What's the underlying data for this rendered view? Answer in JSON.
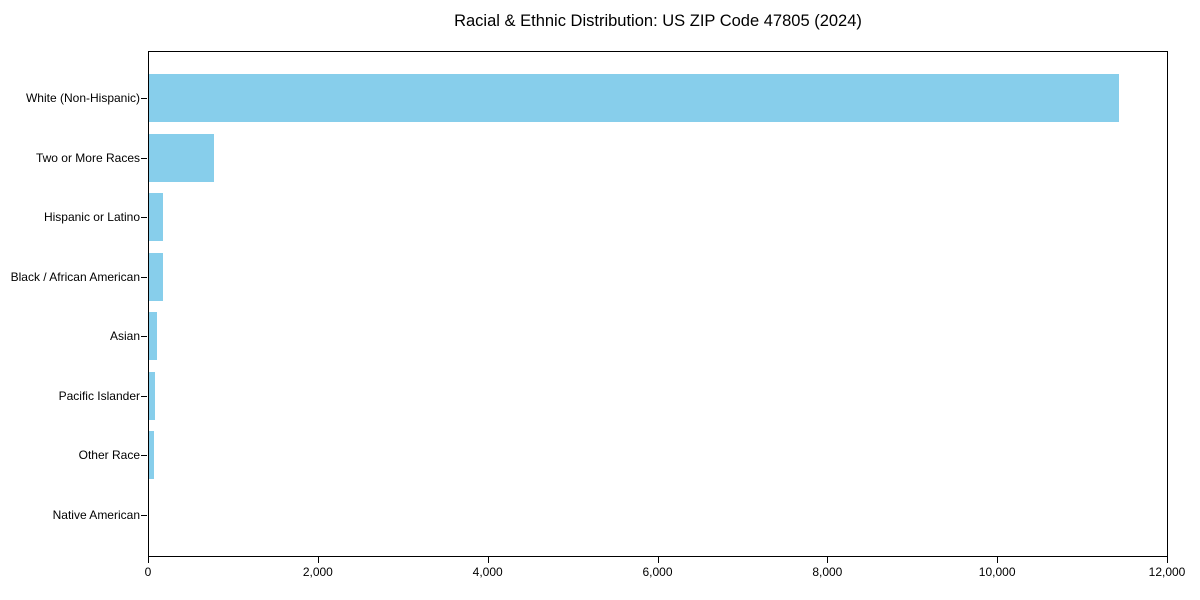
{
  "figure": {
    "background_color": "#ffffff",
    "text_color": "#000000",
    "axis_color": "#000000"
  },
  "chart_data": {
    "type": "bar",
    "orientation": "horizontal",
    "title": "Racial & Ethnic Distribution: US ZIP Code 47805 (2024)",
    "categories": [
      "White (Non-Hispanic)",
      "Two or More Races",
      "Hispanic or Latino",
      "Black / African American",
      "Asian",
      "Pacific Islander",
      "Other Race",
      "Native American"
    ],
    "values": [
      11430,
      770,
      170,
      165,
      90,
      72,
      60,
      0
    ],
    "xlabel": "",
    "ylabel": "",
    "xlim": [
      0,
      12000
    ],
    "x_ticks": [
      0,
      2000,
      4000,
      6000,
      8000,
      10000,
      12000
    ],
    "x_tick_labels": [
      "0",
      "2,000",
      "4,000",
      "6,000",
      "8,000",
      "10,000",
      "12,000"
    ],
    "bar_color": "#87CEEB",
    "grid": false,
    "legend": null
  }
}
